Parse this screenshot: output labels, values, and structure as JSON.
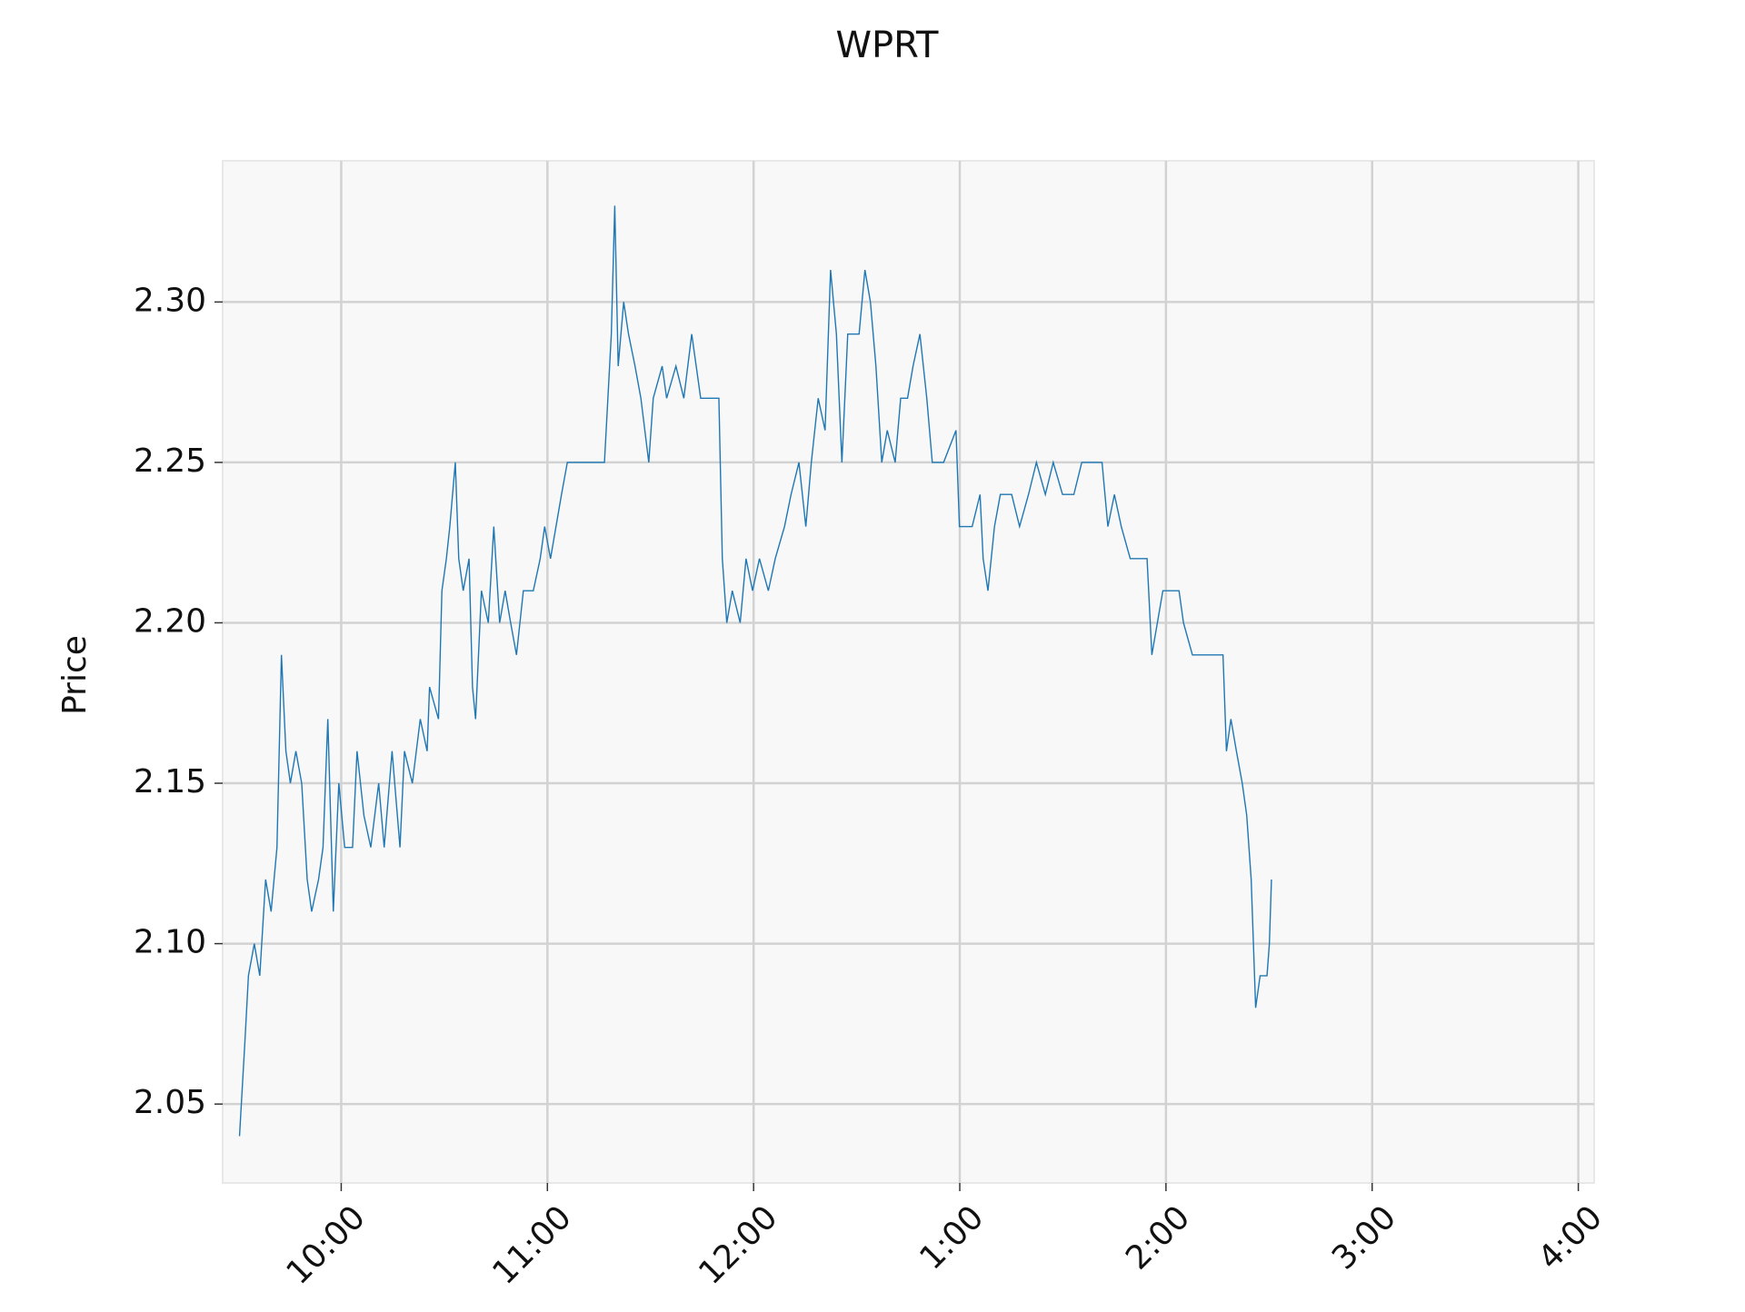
{
  "chart_data": {
    "type": "line",
    "title": "WPRT",
    "y_label": "Price",
    "xlim": [
      565.5,
      964.6
    ],
    "ylim": [
      2.0254,
      2.344
    ],
    "xticks": [
      {
        "value": 600,
        "label": "10:00"
      },
      {
        "value": 660,
        "label": "11:00"
      },
      {
        "value": 720,
        "label": "12:00"
      },
      {
        "value": 780,
        "label": "1:00"
      },
      {
        "value": 840,
        "label": "2:00"
      },
      {
        "value": 900,
        "label": "3:00"
      },
      {
        "value": 960,
        "label": "4:00"
      }
    ],
    "yticks": [
      {
        "value": 2.05,
        "label": "2.05"
      },
      {
        "value": 2.1,
        "label": "2.10"
      },
      {
        "value": 2.15,
        "label": "2.15"
      },
      {
        "value": 2.2,
        "label": "2.20"
      },
      {
        "value": 2.25,
        "label": "2.25"
      },
      {
        "value": 2.3,
        "label": "2.30"
      }
    ],
    "grid": true,
    "x": [
      570.4,
      572,
      573,
      574.7,
      576.3,
      578,
      579.6,
      581.3,
      582.6,
      583.9,
      585.2,
      586.8,
      588.5,
      590.1,
      591.4,
      593.4,
      594.7,
      596.1,
      597.7,
      599.3,
      601,
      603.3,
      604.6,
      606.6,
      608.6,
      610.9,
      612.5,
      614.8,
      617.1,
      618.4,
      620.7,
      623,
      625,
      625.7,
      628.3,
      629.3,
      630.6,
      631.6,
      633.2,
      634.2,
      635.5,
      637.2,
      638.2,
      639.1,
      640.8,
      642.8,
      644.4,
      646.1,
      647.7,
      649.3,
      651,
      653,
      655.9,
      657.9,
      659.2,
      660.9,
      662.5,
      664.1,
      665.8,
      670.1,
      676.6,
      677.6,
      678.6,
      679.6,
      680.6,
      682.2,
      683.6,
      685.5,
      687.2,
      689.5,
      690.8,
      693.4,
      694.7,
      697.4,
      699.7,
      702,
      704.6,
      709.9,
      710.9,
      712.2,
      713.8,
      716.1,
      717.8,
      719.7,
      721.7,
      724.3,
      726.3,
      729,
      730.9,
      733.2,
      735.2,
      736.8,
      738.8,
      740.8,
      742.4,
      744.1,
      745.7,
      747.4,
      750.7,
      752.4,
      754,
      755.6,
      757.3,
      758.9,
      761.2,
      762.8,
      764.8,
      766.4,
      768.4,
      770.4,
      772,
      775.3,
      778.9,
      779.9,
      783.6,
      785.9,
      786.8,
      788.2,
      790.1,
      791.8,
      795.1,
      797.4,
      800,
      802.3,
      804.9,
      807.2,
      809.9,
      813.2,
      815.5,
      821.4,
      823.1,
      825,
      827,
      829.6,
      834.5,
      835.9,
      837.5,
      839.1,
      843.8,
      845.1,
      847.7,
      856.6,
      857.6,
      858.9,
      860.5,
      862.2,
      863.5,
      864.8,
      866.1,
      867.4,
      869.4,
      870.1,
      870.7
    ],
    "series": [
      {
        "name": "WPRT",
        "color": "#1f77b4",
        "values": [
          2.04,
          2.07,
          2.09,
          2.1,
          2.09,
          2.12,
          2.11,
          2.13,
          2.19,
          2.16,
          2.15,
          2.16,
          2.15,
          2.12,
          2.11,
          2.12,
          2.13,
          2.17,
          2.11,
          2.15,
          2.13,
          2.13,
          2.16,
          2.14,
          2.13,
          2.15,
          2.13,
          2.16,
          2.13,
          2.16,
          2.15,
          2.17,
          2.16,
          2.18,
          2.17,
          2.21,
          2.22,
          2.23,
          2.25,
          2.22,
          2.21,
          2.22,
          2.18,
          2.17,
          2.21,
          2.2,
          2.23,
          2.2,
          2.21,
          2.2,
          2.19,
          2.21,
          2.21,
          2.22,
          2.23,
          2.22,
          2.23,
          2.24,
          2.25,
          2.25,
          2.25,
          2.27,
          2.29,
          2.33,
          2.28,
          2.3,
          2.29,
          2.28,
          2.27,
          2.25,
          2.27,
          2.28,
          2.27,
          2.28,
          2.27,
          2.29,
          2.27,
          2.27,
          2.22,
          2.2,
          2.21,
          2.2,
          2.22,
          2.21,
          2.22,
          2.21,
          2.22,
          2.23,
          2.24,
          2.25,
          2.23,
          2.25,
          2.27,
          2.26,
          2.31,
          2.29,
          2.25,
          2.29,
          2.29,
          2.31,
          2.3,
          2.28,
          2.25,
          2.26,
          2.25,
          2.27,
          2.27,
          2.28,
          2.29,
          2.27,
          2.25,
          2.25,
          2.26,
          2.23,
          2.23,
          2.24,
          2.22,
          2.21,
          2.23,
          2.24,
          2.24,
          2.23,
          2.24,
          2.25,
          2.24,
          2.25,
          2.24,
          2.24,
          2.25,
          2.25,
          2.23,
          2.24,
          2.23,
          2.22,
          2.22,
          2.19,
          2.2,
          2.21,
          2.21,
          2.2,
          2.19,
          2.19,
          2.16,
          2.17,
          2.16,
          2.15,
          2.14,
          2.12,
          2.08,
          2.09,
          2.09,
          2.1,
          2.12
        ]
      }
    ]
  }
}
